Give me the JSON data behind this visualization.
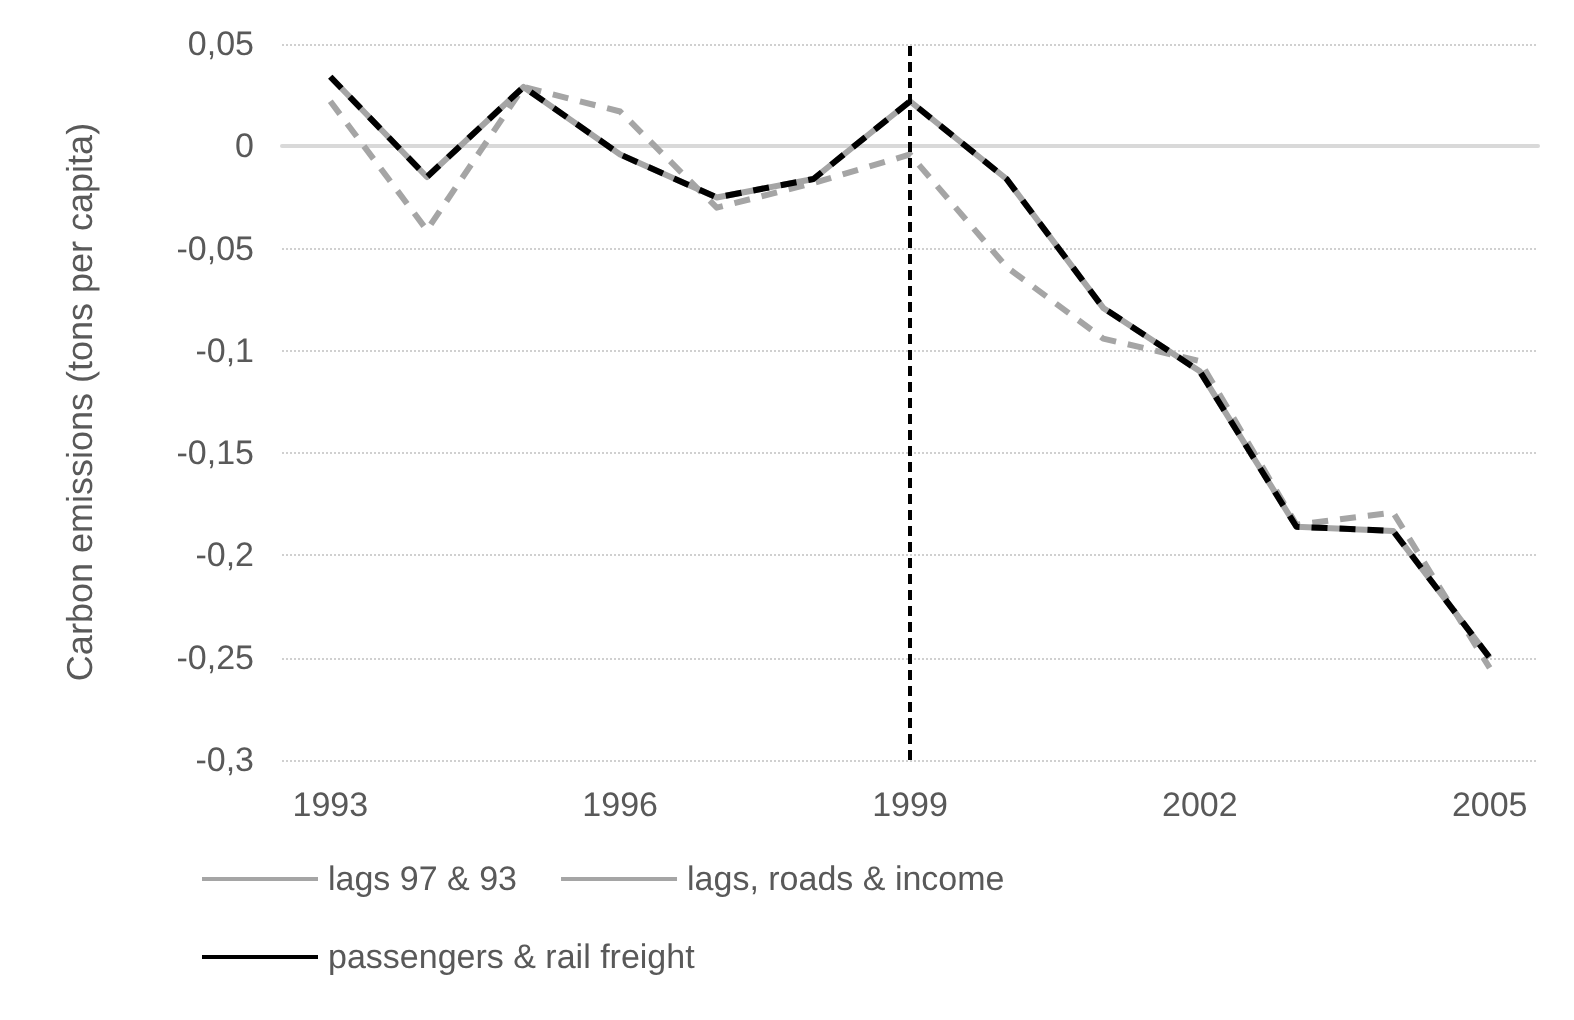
{
  "chart_data": {
    "type": "line",
    "ylabel": "Carbon emissions (tons per capita)",
    "x": [
      1993,
      1994,
      1995,
      1996,
      1997,
      1998,
      1999,
      2000,
      2001,
      2002,
      2003,
      2004,
      2005
    ],
    "xlim": [
      1992.5,
      2005.5
    ],
    "xticks": [
      1993,
      1996,
      1999,
      2002,
      2005
    ],
    "ylim": [
      -0.3,
      0.05
    ],
    "yticks": [
      {
        "value": 0.05,
        "label": "0,05"
      },
      0,
      {
        "value": -0.05,
        "label": "-0,05"
      },
      {
        "value": -0.1,
        "label": "-0,1"
      },
      {
        "value": -0.15,
        "label": "-0,15"
      },
      {
        "value": -0.2,
        "label": "-0,2"
      },
      {
        "value": -0.25,
        "label": "-0,25"
      },
      {
        "value": -0.3,
        "label": "-0,3"
      }
    ],
    "series": [
      {
        "name": "lags 97 & 93",
        "color": "#a5a5a5",
        "line_style": "dashed",
        "values": [
          0.022,
          -0.041,
          0.029,
          0.017,
          -0.03,
          -0.018,
          -0.004,
          -0.059,
          -0.094,
          -0.105,
          -0.185,
          -0.179,
          -0.255
        ]
      },
      {
        "name": "lags, roads & income",
        "color": "#a5a5a5",
        "line_style": "solid",
        "values": [
          0.034,
          -0.015,
          0.029,
          -0.004,
          -0.025,
          -0.016,
          0.022,
          -0.016,
          -0.079,
          -0.11,
          -0.186,
          -0.188,
          -0.25
        ]
      },
      {
        "name": "passengers & rail freight",
        "color": "#000000",
        "line_style": "dashed",
        "values": [
          0.034,
          -0.015,
          0.029,
          -0.004,
          -0.025,
          -0.016,
          0.022,
          -0.016,
          -0.079,
          -0.11,
          -0.186,
          -0.188,
          -0.25
        ]
      }
    ],
    "ref_lines": [
      {
        "axis": "x",
        "value": 1999,
        "label": null,
        "color": "#000000",
        "line_style": "dashed"
      }
    ],
    "grid": "y",
    "legend": "bottom",
    "marker": "none"
  }
}
